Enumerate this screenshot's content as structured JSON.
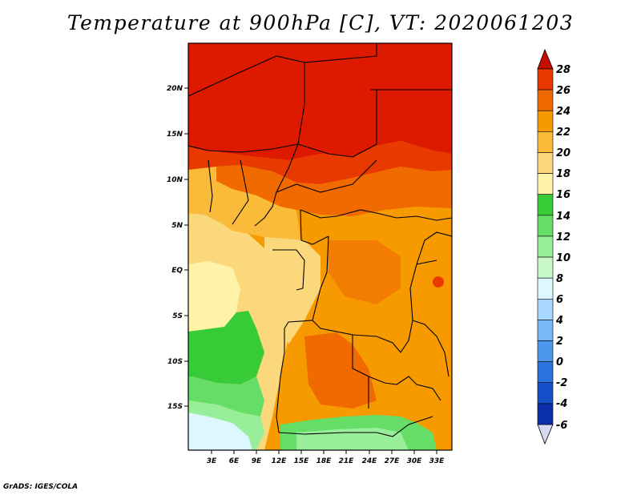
{
  "title": "Temperature at 900hPa [C], VT: 2020061203",
  "credit": "GrADS: IGES/COLA",
  "map": {
    "lat_ticks": [
      "20N",
      "15N",
      "10N",
      "5N",
      "EQ",
      "5S",
      "10S",
      "15S"
    ],
    "lon_ticks": [
      "3E",
      "6E",
      "9E",
      "12E",
      "15E",
      "18E",
      "21E",
      "24E",
      "27E",
      "30E",
      "33E"
    ]
  },
  "colorbar": {
    "labels": [
      "28",
      "26",
      "24",
      "22",
      "20",
      "18",
      "16",
      "14",
      "12",
      "10",
      "8",
      "6",
      "4",
      "2",
      "0",
      "-2",
      "-4",
      "-6"
    ],
    "colors": [
      "#dd1a00",
      "#e83a00",
      "#f06a00",
      "#f79a00",
      "#fbbb3a",
      "#fcd87c",
      "#fff3a8",
      "#37cc37",
      "#66dd66",
      "#99ee99",
      "#c8f8c8",
      "#ddf7ff",
      "#a8d8ff",
      "#78b8f7",
      "#4d97ee",
      "#2a72dd",
      "#1450c8",
      "#0a2fa8",
      "#000a64"
    ],
    "top_arrow_color": "#c40f00",
    "bottom_arrow_color": "#d8d8f4"
  }
}
